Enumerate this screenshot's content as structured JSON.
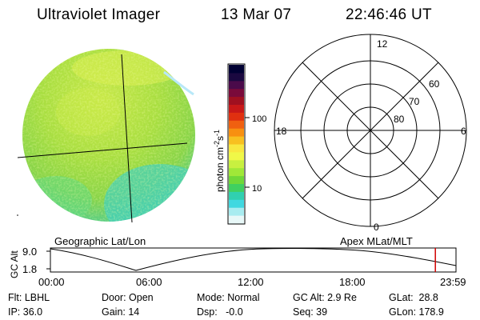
{
  "header": {
    "title": "Ultraviolet Imager",
    "date": "13 Mar 07",
    "time": "22:46:46 UT"
  },
  "colorbar": {
    "label": "photon cm-2s-1",
    "ticks": [
      "100",
      "10"
    ],
    "colors": [
      "#000033",
      "#1a0840",
      "#4a0a4a",
      "#7a0a3a",
      "#a01020",
      "#c81818",
      "#e03010",
      "#f06010",
      "#f89010",
      "#f8c020",
      "#f8e840",
      "#f0f848",
      "#c8f040",
      "#a0e838",
      "#70d838",
      "#40d060",
      "#30d0b0",
      "#40d8e0",
      "#a8ecf0",
      "#e8f8f8"
    ]
  },
  "polar_plot": {
    "top_label": "12",
    "bottom_label": "0",
    "left_label": "18",
    "right_label": "6",
    "ring_labels": [
      "60",
      "70",
      "80"
    ]
  },
  "timeline": {
    "left_caption": "Geographic Lat/Lon",
    "right_caption": "Apex MLat/MLT",
    "y_axis_label": "GC Alt",
    "y_max": "9.0",
    "y_min": "1.8",
    "x_ticks": [
      "00:00",
      "06:00",
      "12:00",
      "18:00",
      "23:59"
    ],
    "marker_color": "#d00000",
    "marker_time_hours": 22.78
  },
  "info": {
    "flt": "Flt: LBHL",
    "ip": "IP: 36.0",
    "door": "Door: Open",
    "gain": "Gain: 14",
    "mode": "Mode: Normal",
    "dsp": "Dsp:   -0.0",
    "gc_alt": "GC Alt: 2.9 Re",
    "seq": "Seq: 39",
    "glat": "GLat:  28.8",
    "glon": "GLon: 178.9"
  }
}
